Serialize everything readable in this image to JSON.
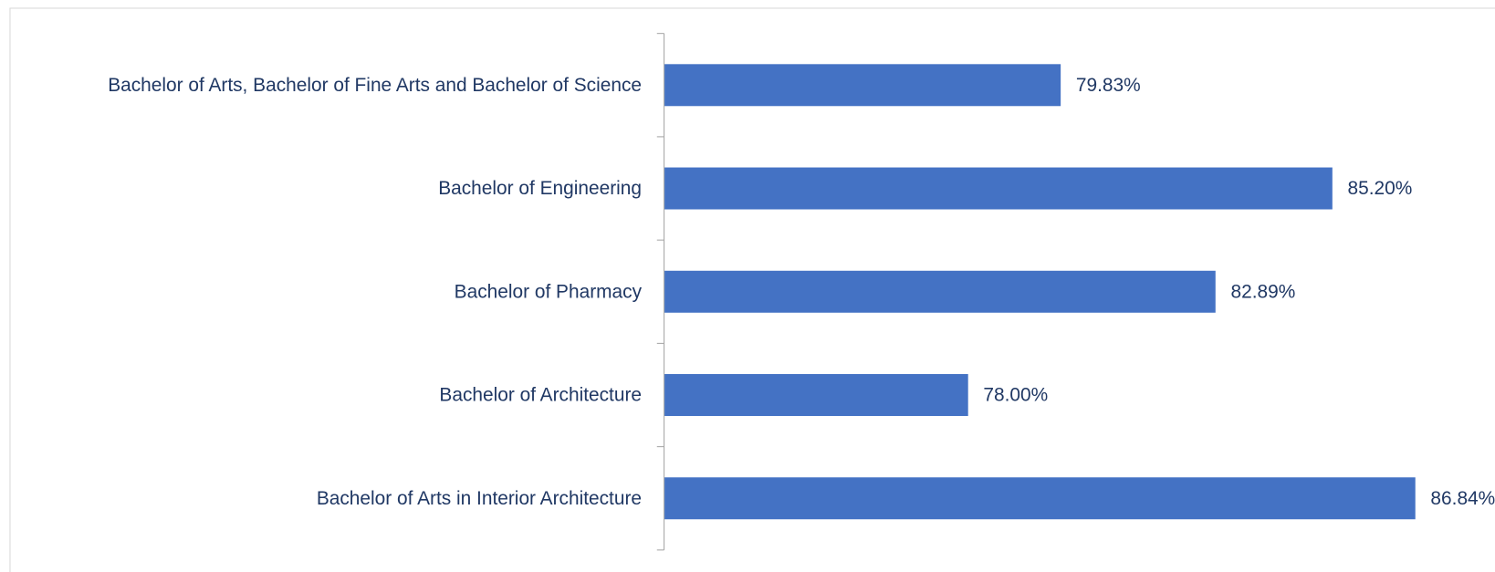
{
  "chart_data": {
    "type": "bar",
    "orientation": "horizontal",
    "categories": [
      "Bachelor of Arts, Bachelor of Fine Arts and Bachelor of Science",
      "Bachelor of Engineering",
      "Bachelor of Pharmacy",
      "Bachelor of Architecture",
      "Bachelor of Arts in Interior Architecture"
    ],
    "values": [
      79.83,
      85.2,
      82.89,
      78.0,
      86.84
    ],
    "value_labels": [
      "79.83%",
      "85.20%",
      "82.89%",
      "78.00%",
      "86.84%"
    ],
    "color": "#4472c4",
    "xlim": [
      72,
      88
    ]
  }
}
